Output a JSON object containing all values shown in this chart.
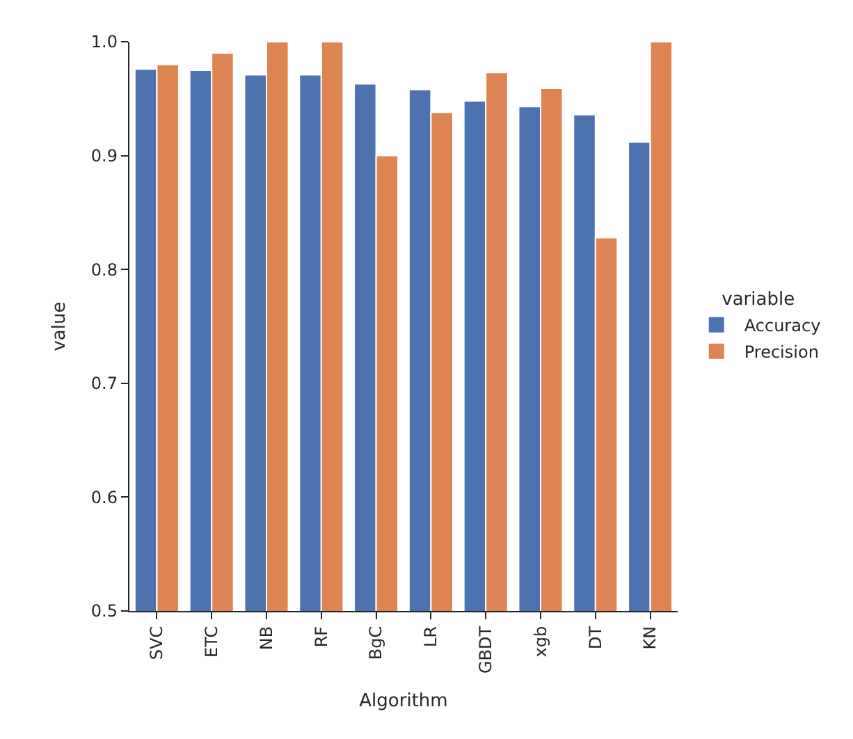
{
  "chart_data": {
    "type": "bar",
    "xlabel": "Algorithm",
    "ylabel": "value",
    "legend_title": "variable",
    "legend": "right",
    "categories": [
      "SVC",
      "ETC",
      "NB",
      "RF",
      "BgC",
      "LR",
      "GBDT",
      "xgb",
      "DT",
      "KN"
    ],
    "series": [
      {
        "name": "Accuracy",
        "color": "#4c72b0",
        "values": [
          0.976,
          0.975,
          0.971,
          0.971,
          0.963,
          0.958,
          0.948,
          0.943,
          0.936,
          0.912
        ]
      },
      {
        "name": "Precision",
        "color": "#dd8452",
        "values": [
          0.98,
          0.99,
          1.0,
          1.0,
          0.9,
          0.938,
          0.973,
          0.959,
          0.828,
          1.0
        ]
      }
    ],
    "ylim": [
      0.5,
      1.0
    ],
    "yticks": [
      {
        "value": 0.5,
        "label": "0.5"
      },
      {
        "value": 0.6,
        "label": "0.6"
      },
      {
        "value": 0.7,
        "label": "0.7"
      },
      {
        "value": 0.8,
        "label": "0.8"
      },
      {
        "value": 0.9,
        "label": "0.9"
      },
      {
        "value": 1.0,
        "label": "1.0"
      }
    ]
  }
}
